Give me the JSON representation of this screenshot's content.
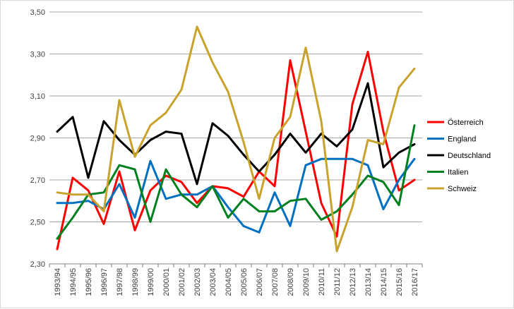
{
  "chart_data": {
    "type": "line",
    "title": "",
    "xlabel": "",
    "ylabel": "",
    "ylim": [
      2.3,
      3.5
    ],
    "y_ticks": [
      "2,30",
      "2,50",
      "2,70",
      "2,90",
      "3,10",
      "3,30",
      "3,50"
    ],
    "y_tick_values": [
      2.3,
      2.5,
      2.7,
      2.9,
      3.1,
      3.3,
      3.5
    ],
    "grid": "horizontal",
    "legend": "right",
    "categories": [
      "1993/94",
      "1994/95",
      "1995/96",
      "1996/97",
      "1997/98",
      "1998/99",
      "1999/00",
      "2000/01",
      "2001/02",
      "2002/03",
      "2003/04",
      "2004/05",
      "2005/06",
      "2006/07",
      "2007/08",
      "2008/09",
      "2009/10",
      "2010/11",
      "2011/12",
      "2012/13",
      "2013/14",
      "2014/15",
      "2015/16",
      "2016/17"
    ],
    "series": [
      {
        "name": "Österreich",
        "color": "#ff0000",
        "values": [
          2.37,
          2.71,
          2.65,
          2.49,
          2.74,
          2.46,
          2.65,
          2.72,
          2.69,
          2.59,
          2.67,
          2.66,
          2.62,
          2.74,
          2.67,
          3.27,
          2.93,
          2.59,
          2.43,
          3.06,
          3.31,
          2.93,
          2.65,
          2.7
        ]
      },
      {
        "name": "England",
        "color": "#0070c0",
        "values": [
          2.59,
          2.59,
          2.6,
          2.56,
          2.68,
          2.52,
          2.79,
          2.61,
          2.63,
          2.63,
          2.67,
          2.57,
          2.48,
          2.45,
          2.64,
          2.48,
          2.77,
          2.8,
          2.8,
          2.8,
          2.77,
          2.56,
          2.7,
          2.8
        ]
      },
      {
        "name": "Deutschland",
        "color": "#000000",
        "values": [
          2.93,
          3.0,
          2.71,
          2.98,
          2.89,
          2.82,
          2.89,
          2.93,
          2.92,
          2.68,
          2.97,
          2.91,
          2.82,
          2.74,
          2.82,
          2.92,
          2.83,
          2.92,
          2.86,
          2.94,
          3.16,
          2.76,
          2.83,
          2.87
        ]
      },
      {
        "name": "Italien",
        "color": "#00801e",
        "values": [
          2.42,
          2.52,
          2.63,
          2.64,
          2.77,
          2.75,
          2.5,
          2.75,
          2.63,
          2.57,
          2.67,
          2.52,
          2.61,
          2.55,
          2.55,
          2.6,
          2.61,
          2.51,
          2.55,
          2.63,
          2.72,
          2.69,
          2.58,
          2.96
        ]
      },
      {
        "name": "Schweiz",
        "color": "#c9a22b",
        "values": [
          2.64,
          2.63,
          2.63,
          2.55,
          3.08,
          2.81,
          2.96,
          3.02,
          3.13,
          3.43,
          3.26,
          3.12,
          2.88,
          2.61,
          2.9,
          3.0,
          3.33,
          2.98,
          2.36,
          2.57,
          2.89,
          2.87,
          3.14,
          3.23
        ]
      }
    ]
  }
}
